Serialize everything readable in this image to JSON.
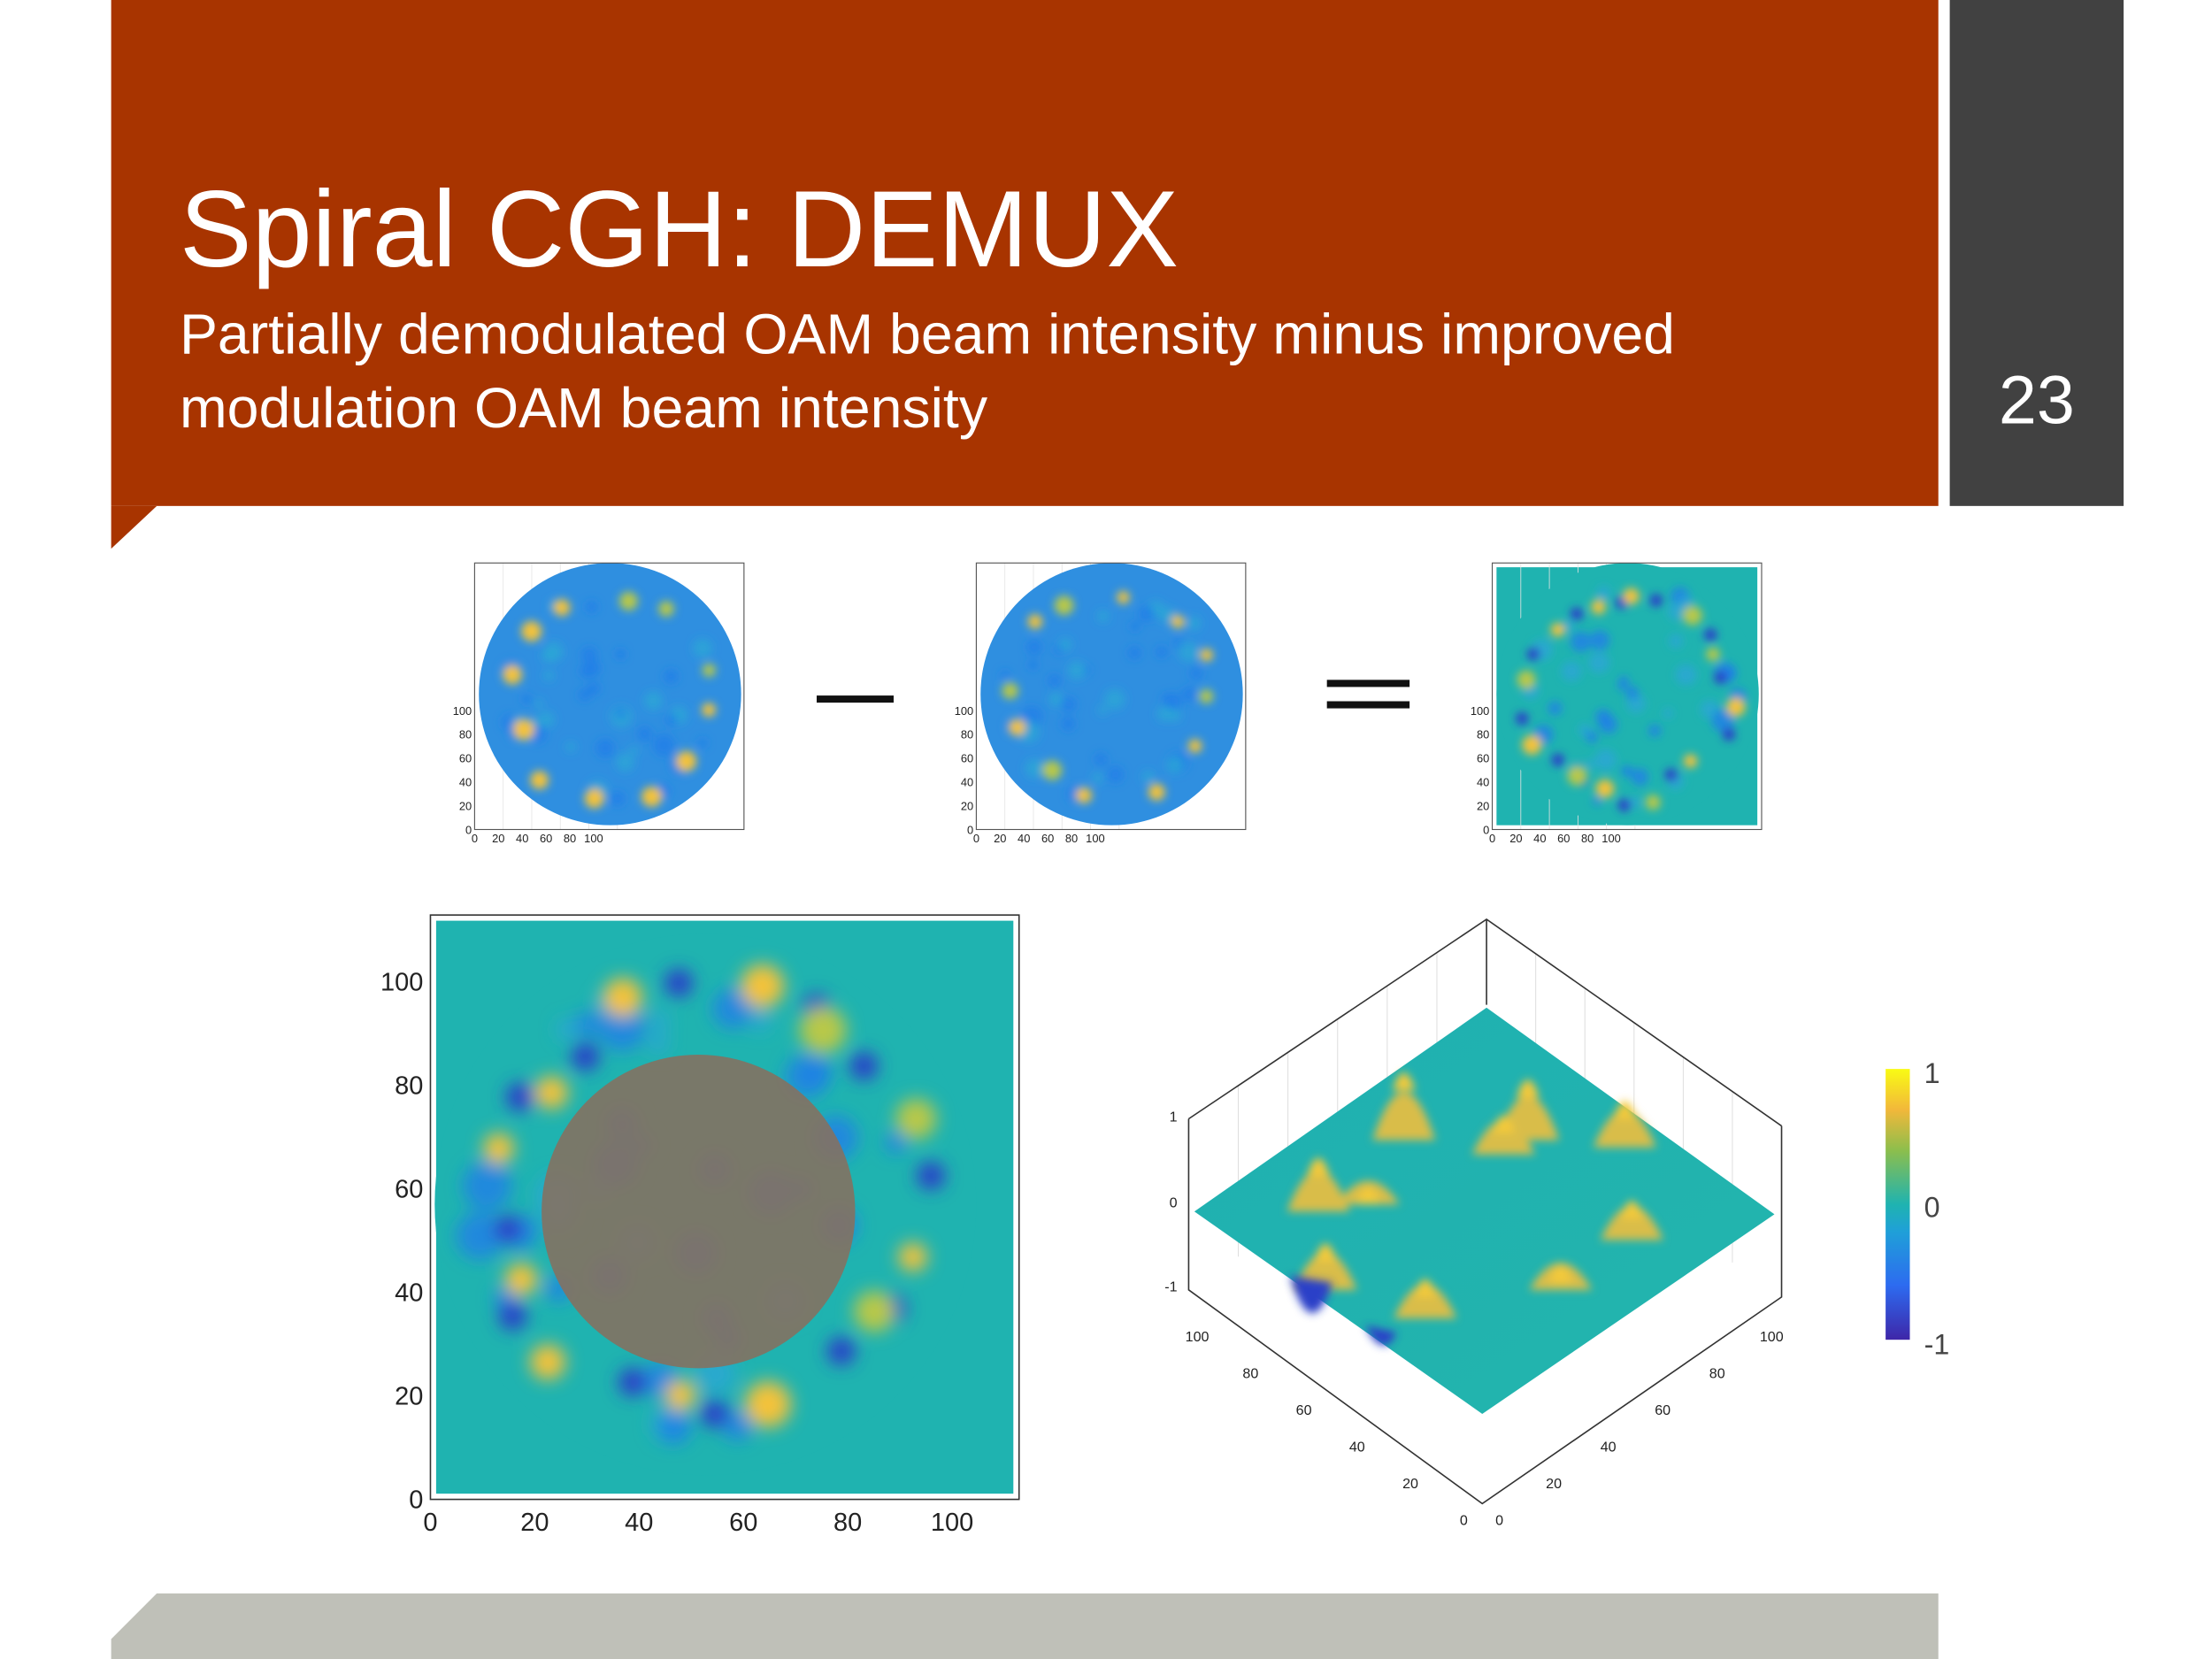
{
  "header": {
    "title": "Spiral CGH: DEMUX",
    "subtitle_lines": [
      "Partially demodulated OAM beam intensity minus improved",
      "modulation OAM beam intensity"
    ],
    "page_number": "23"
  },
  "figures": {
    "small_plots": [
      {
        "xticks": [
          0,
          20,
          40,
          60,
          80,
          100
        ],
        "yticks": [
          0,
          20,
          40,
          60,
          80,
          100
        ]
      },
      {
        "xticks": [
          0,
          20,
          40,
          60,
          80,
          100
        ],
        "yticks": [
          0,
          20,
          40,
          60,
          80,
          100
        ]
      },
      {
        "xticks": [
          0,
          20,
          40,
          60,
          80,
          100
        ],
        "yticks": [
          0,
          20,
          40,
          60,
          80,
          100
        ]
      }
    ],
    "large_plot": {
      "xticks": [
        0,
        20,
        40,
        60,
        80,
        100
      ],
      "yticks": [
        0,
        20,
        40,
        60,
        80,
        100
      ]
    },
    "surface_plot": {
      "zticks": [
        -1,
        0,
        1
      ],
      "left_ticks": [
        0,
        20,
        40,
        60,
        80,
        100
      ],
      "right_ticks": [
        0,
        20,
        40,
        60,
        80,
        100
      ]
    },
    "colorbar": {
      "ticks": [
        -1,
        0,
        1
      ]
    }
  }
}
